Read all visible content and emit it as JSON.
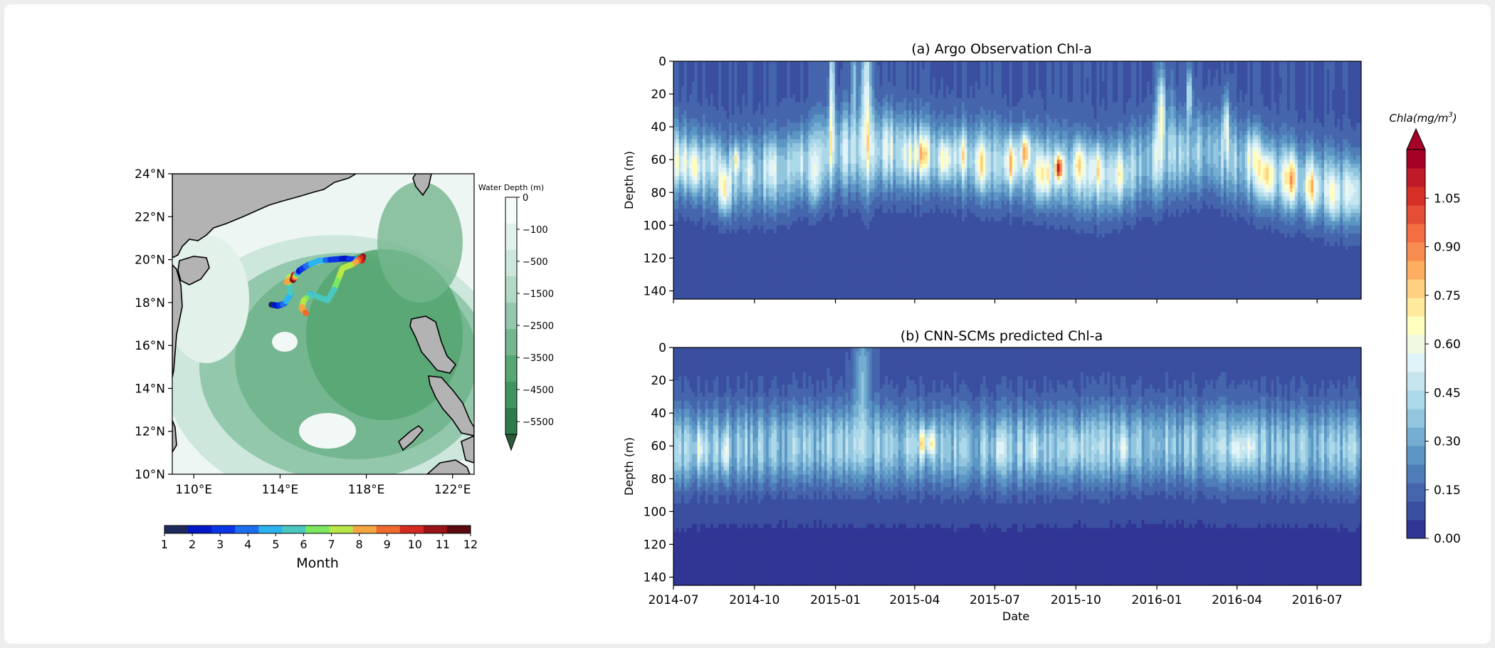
{
  "chart_data": [
    {
      "type": "map",
      "xlabel": "",
      "ylabel": "",
      "xlim_deg_e": [
        109,
        123
      ],
      "ylim_deg_n": [
        10,
        24
      ],
      "x_tick_values": [
        110,
        114,
        118,
        122
      ],
      "x_tick_labels": [
        "110°E",
        "114°E",
        "118°E",
        "122°E"
      ],
      "y_tick_values": [
        10,
        12,
        14,
        16,
        18,
        20,
        22,
        24
      ],
      "y_tick_labels": [
        "10°N",
        "12°N",
        "14°N",
        "16°N",
        "18°N",
        "20°N",
        "22°N",
        "24°N"
      ],
      "bathymetry_colorbar": {
        "title": "Water Depth (m)",
        "tick_values": [
          0,
          -100,
          -500,
          -1500,
          -2500,
          -3500,
          -4500,
          -5500
        ],
        "tick_labels": [
          "0",
          "−100",
          "−500",
          "−1500",
          "−2500",
          "−3500",
          "−4500",
          "−5500"
        ],
        "extend": "min",
        "colors": [
          "#f6faf8",
          "#e3f1eb",
          "#cde7dc",
          "#b2d9c6",
          "#94c8ad",
          "#74b68f",
          "#57a673",
          "#3e965e",
          "#2d7a4b"
        ]
      },
      "float_track": {
        "points": [
          {
            "lon": 113.6,
            "lat": 17.9,
            "month": 1
          },
          {
            "lon": 113.9,
            "lat": 17.85,
            "month": 2
          },
          {
            "lon": 114.2,
            "lat": 17.95,
            "month": 4
          },
          {
            "lon": 114.5,
            "lat": 18.4,
            "month": 5
          },
          {
            "lon": 114.4,
            "lat": 18.9,
            "month": 6
          },
          {
            "lon": 114.45,
            "lat": 19.2,
            "month": 7
          },
          {
            "lon": 114.3,
            "lat": 18.95,
            "month": 8
          },
          {
            "lon": 114.6,
            "lat": 19.1,
            "month": 9
          },
          {
            "lon": 114.65,
            "lat": 19.3,
            "month": 10
          },
          {
            "lon": 114.6,
            "lat": 19.05,
            "month": 12
          },
          {
            "lon": 114.9,
            "lat": 19.5,
            "month": 2
          },
          {
            "lon": 115.3,
            "lat": 19.75,
            "month": 4
          },
          {
            "lon": 115.8,
            "lat": 19.95,
            "month": 5
          },
          {
            "lon": 116.4,
            "lat": 20.0,
            "month": 3
          },
          {
            "lon": 117.0,
            "lat": 20.05,
            "month": 2
          },
          {
            "lon": 117.5,
            "lat": 20.0,
            "month": 3
          },
          {
            "lon": 117.8,
            "lat": 19.95,
            "month": 10
          },
          {
            "lon": 117.85,
            "lat": 20.15,
            "month": 11
          },
          {
            "lon": 117.4,
            "lat": 19.8,
            "month": 8
          },
          {
            "lon": 116.9,
            "lat": 19.6,
            "month": 7
          },
          {
            "lon": 116.7,
            "lat": 19.1,
            "month": 7
          },
          {
            "lon": 116.5,
            "lat": 18.6,
            "month": 6
          },
          {
            "lon": 116.2,
            "lat": 18.1,
            "month": 6
          },
          {
            "lon": 115.4,
            "lat": 18.4,
            "month": 5
          },
          {
            "lon": 115.1,
            "lat": 18.1,
            "month": 7
          },
          {
            "lon": 115.0,
            "lat": 17.75,
            "month": 8
          },
          {
            "lon": 115.2,
            "lat": 17.5,
            "month": 9
          }
        ]
      },
      "month_colorbar": {
        "label": "Month",
        "tick_labels": [
          "1",
          "2",
          "3",
          "4",
          "5",
          "6",
          "7",
          "8",
          "9",
          "10",
          "11",
          "12"
        ],
        "colors": [
          "#1d2a5c",
          "#0018c8",
          "#0a36e8",
          "#1e6ef0",
          "#2bb4f0",
          "#4ac8c0",
          "#7be860",
          "#b8e848",
          "#f6a640",
          "#f06a2e",
          "#d42a22",
          "#9a1418",
          "#5a0a0e"
        ]
      }
    },
    {
      "type": "heatmap",
      "title": "(a) Argo Observation Chl-a",
      "ylabel": "Depth (m)",
      "xlabel": "",
      "ylim": [
        145,
        0
      ],
      "y_tick_values": [
        0,
        20,
        40,
        60,
        80,
        100,
        120,
        140
      ],
      "y_tick_labels": [
        "0",
        "20",
        "40",
        "60",
        "80",
        "100",
        "120",
        "140"
      ],
      "x_tick_labels": [
        "2014-07",
        "2014-10",
        "2015-01",
        "2015-04",
        "2015-07",
        "2015-10",
        "2016-01",
        "2016-04",
        "2016-07"
      ],
      "show_x_tick_labels": false,
      "x_range": [
        "2014-07-01",
        "2016-08-20"
      ],
      "background_value": 0.07,
      "scm_depth_by_date": [
        {
          "date": "2014-07-01",
          "depth": 60
        },
        {
          "date": "2014-09-01",
          "depth": 70
        },
        {
          "date": "2014-11-01",
          "depth": 68
        },
        {
          "date": "2015-01-01",
          "depth": 55
        },
        {
          "date": "2015-04-01",
          "depth": 57
        },
        {
          "date": "2015-07-01",
          "depth": 62
        },
        {
          "date": "2015-09-01",
          "depth": 66
        },
        {
          "date": "2015-11-01",
          "depth": 72
        },
        {
          "date": "2016-01-01",
          "depth": 60
        },
        {
          "date": "2016-03-01",
          "depth": 55
        },
        {
          "date": "2016-05-01",
          "depth": 68
        },
        {
          "date": "2016-08-20",
          "depth": 80
        }
      ],
      "features": [
        {
          "date": "2014-07-08",
          "depth": 62,
          "value": 0.55,
          "days": 8,
          "depth_spread": 12
        },
        {
          "date": "2014-07-25",
          "depth": 65,
          "value": 0.62,
          "days": 8,
          "depth_spread": 12
        },
        {
          "date": "2014-08-15",
          "depth": 60,
          "value": 0.55,
          "days": 6,
          "depth_spread": 12
        },
        {
          "date": "2014-08-28",
          "depth": 78,
          "value": 0.78,
          "days": 6,
          "depth_spread": 14
        },
        {
          "date": "2014-09-10",
          "depth": 60,
          "value": 0.65,
          "days": 4,
          "depth_spread": 8
        },
        {
          "date": "2014-09-25",
          "depth": 65,
          "value": 0.5,
          "days": 6,
          "depth_spread": 14
        },
        {
          "date": "2014-10-20",
          "depth": 63,
          "value": 0.5,
          "days": 8,
          "depth_spread": 14
        },
        {
          "date": "2014-11-20",
          "depth": 60,
          "value": 0.48,
          "days": 8,
          "depth_spread": 14
        },
        {
          "date": "2014-12-08",
          "depth": 75,
          "value": 0.52,
          "days": 7,
          "depth_spread": 16
        },
        {
          "date": "2014-12-28",
          "depth": 20,
          "value": 0.78,
          "days": 3,
          "depth_spread": 45
        },
        {
          "date": "2015-01-12",
          "depth": 55,
          "value": 0.5,
          "days": 4,
          "depth_spread": 30
        },
        {
          "date": "2015-01-22",
          "depth": 10,
          "value": 0.6,
          "days": 3,
          "depth_spread": 25
        },
        {
          "date": "2015-02-05",
          "depth": 22,
          "value": 0.78,
          "days": 6,
          "depth_spread": 50
        },
        {
          "date": "2015-03-01",
          "depth": 50,
          "value": 0.5,
          "days": 8,
          "depth_spread": 20
        },
        {
          "date": "2015-03-25",
          "depth": 58,
          "value": 0.55,
          "days": 6,
          "depth_spread": 14
        },
        {
          "date": "2015-04-10",
          "depth": 57,
          "value": 0.72,
          "days": 8,
          "depth_spread": 12
        },
        {
          "date": "2015-05-05",
          "depth": 60,
          "value": 0.7,
          "days": 8,
          "depth_spread": 12
        },
        {
          "date": "2015-05-25",
          "depth": 57,
          "value": 0.62,
          "days": 6,
          "depth_spread": 12
        },
        {
          "date": "2015-06-15",
          "depth": 63,
          "value": 0.65,
          "days": 8,
          "depth_spread": 14
        },
        {
          "date": "2015-07-20",
          "depth": 62,
          "value": 0.75,
          "days": 8,
          "depth_spread": 14
        },
        {
          "date": "2015-08-05",
          "depth": 55,
          "value": 0.78,
          "days": 6,
          "depth_spread": 10
        },
        {
          "date": "2015-08-25",
          "depth": 70,
          "value": 0.72,
          "days": 8,
          "depth_spread": 14
        },
        {
          "date": "2015-09-12",
          "depth": 65,
          "value": 1.08,
          "days": 4,
          "depth_spread": 8
        },
        {
          "date": "2015-10-05",
          "depth": 62,
          "value": 0.7,
          "days": 6,
          "depth_spread": 12
        },
        {
          "date": "2015-10-25",
          "depth": 65,
          "value": 0.65,
          "days": 8,
          "depth_spread": 14
        },
        {
          "date": "2015-11-20",
          "depth": 70,
          "value": 0.58,
          "days": 8,
          "depth_spread": 14
        },
        {
          "date": "2016-01-02",
          "depth": 40,
          "value": 0.52,
          "days": 3,
          "depth_spread": 40
        },
        {
          "date": "2016-01-07",
          "depth": 28,
          "value": 0.78,
          "days": 4,
          "depth_spread": 22
        },
        {
          "date": "2016-01-18",
          "depth": 35,
          "value": 0.5,
          "days": 3,
          "depth_spread": 35
        },
        {
          "date": "2016-02-07",
          "depth": 20,
          "value": 0.75,
          "days": 3,
          "depth_spread": 15
        },
        {
          "date": "2016-03-20",
          "depth": 38,
          "value": 0.75,
          "days": 3,
          "depth_spread": 18
        },
        {
          "date": "2016-04-20",
          "depth": 57,
          "value": 0.6,
          "days": 8,
          "depth_spread": 14
        },
        {
          "date": "2016-05-05",
          "depth": 70,
          "value": 0.78,
          "days": 8,
          "depth_spread": 14
        },
        {
          "date": "2016-06-01",
          "depth": 72,
          "value": 0.75,
          "days": 8,
          "depth_spread": 14
        },
        {
          "date": "2016-06-25",
          "depth": 78,
          "value": 0.72,
          "days": 8,
          "depth_spread": 14
        },
        {
          "date": "2016-07-20",
          "depth": 82,
          "value": 0.62,
          "days": 8,
          "depth_spread": 14
        },
        {
          "date": "2016-08-10",
          "depth": 80,
          "value": 0.55,
          "days": 8,
          "depth_spread": 14
        }
      ]
    },
    {
      "type": "heatmap",
      "title": "(b) CNN-SCMs predicted Chl-a",
      "ylabel": "Depth (m)",
      "xlabel": "Date",
      "ylim": [
        145,
        0
      ],
      "y_tick_values": [
        0,
        20,
        40,
        60,
        80,
        100,
        120,
        140
      ],
      "y_tick_labels": [
        "0",
        "20",
        "40",
        "60",
        "80",
        "100",
        "120",
        "140"
      ],
      "x_tick_labels": [
        "2014-07",
        "2014-10",
        "2015-01",
        "2015-04",
        "2015-07",
        "2015-10",
        "2016-01",
        "2016-04",
        "2016-07"
      ],
      "show_x_tick_labels": true,
      "x_range": [
        "2014-07-01",
        "2016-08-20"
      ],
      "background_value": 0.05,
      "scm_depth_by_date": [
        {
          "date": "2014-07-01",
          "depth": 62
        },
        {
          "date": "2015-01-01",
          "depth": 60
        },
        {
          "date": "2015-07-01",
          "depth": 62
        },
        {
          "date": "2016-01-01",
          "depth": 60
        },
        {
          "date": "2016-08-20",
          "depth": 62
        }
      ],
      "features": [
        {
          "date": "2014-08-01",
          "depth": 62,
          "value": 0.55,
          "days": 6,
          "depth_spread": 12
        },
        {
          "date": "2014-08-28",
          "depth": 65,
          "value": 0.6,
          "days": 4,
          "depth_spread": 12
        },
        {
          "date": "2015-02-01",
          "depth": 15,
          "value": 0.58,
          "days": 10,
          "depth_spread": 30
        },
        {
          "date": "2015-04-10",
          "depth": 58,
          "value": 0.7,
          "days": 5,
          "depth_spread": 8
        },
        {
          "date": "2015-04-20",
          "depth": 58,
          "value": 0.7,
          "days": 4,
          "depth_spread": 8
        },
        {
          "date": "2015-07-05",
          "depth": 62,
          "value": 0.48,
          "days": 6,
          "depth_spread": 10
        },
        {
          "date": "2015-08-15",
          "depth": 62,
          "value": 0.5,
          "days": 6,
          "depth_spread": 10
        },
        {
          "date": "2015-10-01",
          "depth": 62,
          "value": 0.5,
          "days": 6,
          "depth_spread": 10
        },
        {
          "date": "2015-11-25",
          "depth": 62,
          "value": 0.5,
          "days": 6,
          "depth_spread": 10
        },
        {
          "date": "2016-04-01",
          "depth": 62,
          "value": 0.55,
          "days": 6,
          "depth_spread": 10
        },
        {
          "date": "2016-04-15",
          "depth": 60,
          "value": 0.52,
          "days": 6,
          "depth_spread": 10
        }
      ]
    },
    {
      "type": "colorbar",
      "label": "Chla(mg/m^3)",
      "label_base": "Chla(mg/m",
      "label_exponent": "3",
      "label_close": ")",
      "min": 0,
      "max": 1.2,
      "extend": "max",
      "tick_values": [
        0.0,
        0.15,
        0.3,
        0.45,
        0.6,
        0.75,
        0.9,
        1.05
      ],
      "tick_labels": [
        "0.00",
        "0.15",
        "0.30",
        "0.45",
        "0.60",
        "0.75",
        "0.90",
        "1.05"
      ],
      "colors": [
        "#313695",
        "#3b4fa0",
        "#4565ac",
        "#4f7db8",
        "#5b96c4",
        "#74add1",
        "#92c5de",
        "#abd9e9",
        "#c6e5ef",
        "#e0f3f8",
        "#f2f9e3",
        "#ffffbf",
        "#fee99d",
        "#fed07f",
        "#fdae61",
        "#f88d52",
        "#f46d43",
        "#e44e36",
        "#d73027",
        "#bf1a28",
        "#a50026"
      ]
    }
  ]
}
